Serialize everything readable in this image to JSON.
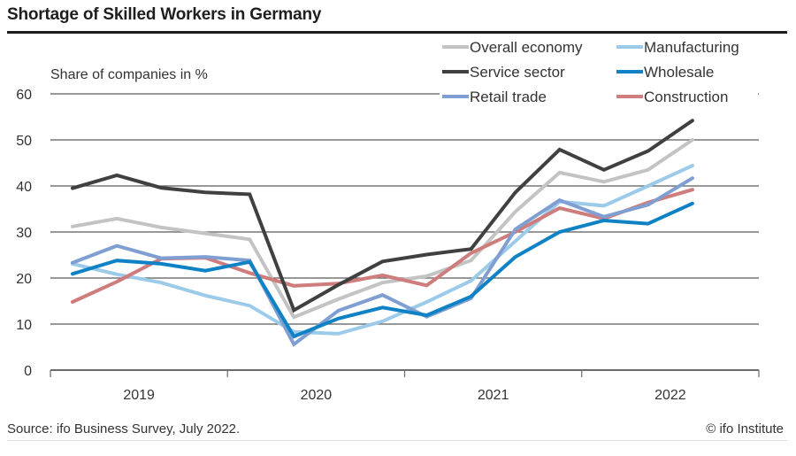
{
  "header": {
    "title": "Shortage of Skilled Workers in Germany"
  },
  "footer": {
    "source": "Source: ifo Business Survey, July 2022.",
    "copyright": "© ifo Institute"
  },
  "chart_data": {
    "type": "line",
    "title": "Shortage of Skilled Workers in Germany",
    "ylabel": "Share of companies in %",
    "xlabel": "",
    "ylim": [
      0,
      60
    ],
    "yticks": [
      0,
      10,
      20,
      30,
      40,
      50,
      60
    ],
    "grid": true,
    "legend_position": "top-right",
    "x_periods": [
      "2019Q1",
      "2019Q2",
      "2019Q3",
      "2019Q4",
      "2020Q1",
      "2020Q2",
      "2020Q3",
      "2020Q4",
      "2021Q1",
      "2021Q2",
      "2021Q3",
      "2021Q4",
      "2022Q1",
      "2022Q2",
      "2022Q3"
    ],
    "x_year_labels": [
      "2019",
      "2020",
      "2021",
      "2022"
    ],
    "series": [
      {
        "name": "Overall economy",
        "color": "#c3c3c3",
        "values": [
          31.2,
          32.9,
          31.0,
          29.7,
          28.4,
          11.5,
          15.4,
          19.0,
          20.4,
          23.8,
          34.4,
          42.9,
          40.9,
          43.5,
          50.0
        ]
      },
      {
        "name": "Manufacturing",
        "color": "#9ccbea",
        "values": [
          23.1,
          20.8,
          19.0,
          16.2,
          14.0,
          8.3,
          7.9,
          10.6,
          14.8,
          19.4,
          28.0,
          36.6,
          35.7,
          40.0,
          44.4
        ]
      },
      {
        "name": "Service sector",
        "color": "#404040",
        "values": [
          39.5,
          42.3,
          39.6,
          38.6,
          38.2,
          13.0,
          18.5,
          23.6,
          25.1,
          26.3,
          38.6,
          47.9,
          43.5,
          47.6,
          54.2
        ]
      },
      {
        "name": "Wholesale",
        "color": "#0f82c5",
        "values": [
          20.9,
          23.8,
          23.1,
          21.6,
          23.5,
          7.3,
          11.2,
          13.6,
          11.9,
          16.0,
          24.6,
          30.0,
          32.5,
          31.8,
          36.2
        ]
      },
      {
        "name": "Retail trade",
        "color": "#7f9fd3",
        "values": [
          23.3,
          27.0,
          24.3,
          24.6,
          23.8,
          5.6,
          12.9,
          16.3,
          11.6,
          15.6,
          30.6,
          36.9,
          33.3,
          35.9,
          41.7
        ]
      },
      {
        "name": "Construction",
        "color": "#cf7c7c",
        "values": [
          14.8,
          19.2,
          24.2,
          24.4,
          21.1,
          18.3,
          18.8,
          20.6,
          18.4,
          25.4,
          30.0,
          35.2,
          32.9,
          36.4,
          39.2
        ]
      }
    ]
  }
}
